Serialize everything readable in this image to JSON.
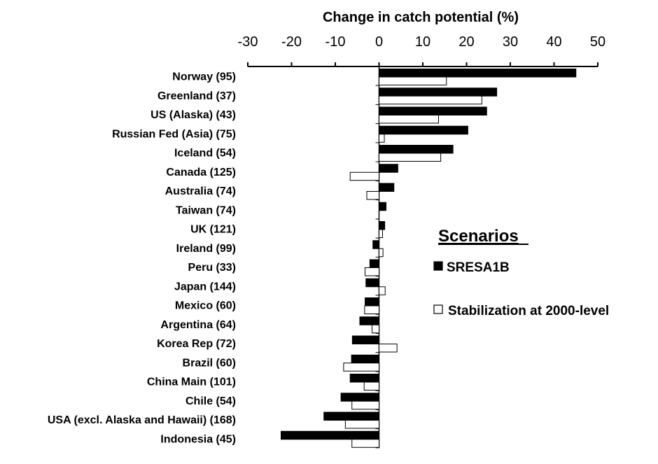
{
  "chart_data": {
    "type": "bar",
    "orientation": "horizontal",
    "title": "Change in catch potential (%)",
    "xlim": [
      -30,
      50
    ],
    "xticks": [
      -30,
      -20,
      -10,
      0,
      10,
      20,
      30,
      40,
      50
    ],
    "grid": false,
    "legend_title": "Scenarios",
    "legend_position": "right",
    "categories": [
      "Norway (95)",
      "Greenland (37)",
      "US (Alaska) (43)",
      "Russian Fed (Asia) (75)",
      "Iceland (54)",
      "Canada (125)",
      "Australia (74)",
      "Taiwan (74)",
      "UK (121)",
      "Ireland (99)",
      "Peru (33)",
      "Japan (144)",
      "Mexico (60)",
      "Argentina (64)",
      "Korea Rep (72)",
      "Brazil (60)",
      "China Main (101)",
      "Chile (54)",
      "USA (excl. Alaska and Hawaii) (168)",
      "Indonesia (45)"
    ],
    "series": [
      {
        "name": "SRESA1B",
        "color": "#000000",
        "values": [
          45,
          26.9,
          24.6,
          20.3,
          16.9,
          4.3,
          3.4,
          1.6,
          1.3,
          -1.4,
          -2.1,
          -3.0,
          -3.2,
          -4.4,
          -6.1,
          -6.3,
          -6.6,
          -8.7,
          -12.6,
          -22.4
        ]
      },
      {
        "name": "Stabilization at 2000-level",
        "color": "#ffffff",
        "values": [
          15.4,
          23.5,
          13.6,
          1.2,
          14.1,
          -6.6,
          -2.8,
          0,
          0.8,
          0.9,
          -3.2,
          1.4,
          -3.3,
          -1.6,
          4.1,
          -8.1,
          -3.4,
          -6.2,
          -7.7,
          -6.2
        ]
      }
    ]
  }
}
